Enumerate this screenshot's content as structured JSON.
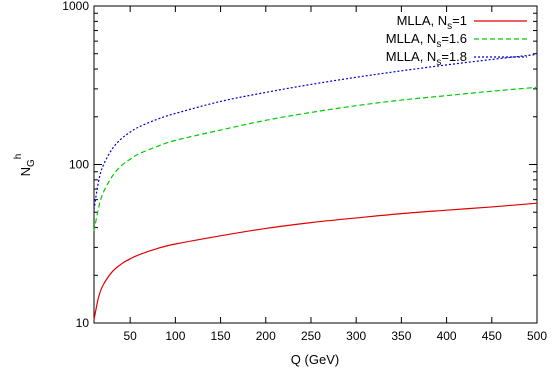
{
  "chart_data": {
    "type": "line",
    "title": "",
    "xlabel": "Q (GeV)",
    "ylabel": {
      "main": "N",
      "sub": "G",
      "sup": "h"
    },
    "xlim": [
      10,
      500
    ],
    "ylim": [
      10,
      1000
    ],
    "y_scale": "log",
    "grid": false,
    "legend_position": "top-right",
    "x_ticks": [
      "50",
      "100",
      "150",
      "200",
      "250",
      "300",
      "350",
      "400",
      "450",
      "500"
    ],
    "y_ticks": [
      "10",
      "100",
      "1000"
    ],
    "series": [
      {
        "name": "MLLA, N_s=1",
        "label_main": "MLLA, N",
        "label_sub": "s",
        "label_tail": "=1",
        "color": "#e00000",
        "dash": "solid",
        "x": [
          10,
          15,
          20,
          30,
          40,
          50,
          60,
          80,
          100,
          150,
          200,
          250,
          300,
          350,
          400,
          450,
          500
        ],
        "y": [
          10.5,
          14.5,
          17.3,
          21.0,
          23.5,
          25.4,
          27.0,
          29.5,
          31.5,
          35.5,
          39.5,
          43.0,
          46.0,
          49.0,
          51.5,
          54.0,
          57.0
        ]
      },
      {
        "name": "MLLA, N_s=1.6",
        "label_main": "MLLA, N",
        "label_sub": "s",
        "label_tail": "=1.6",
        "color": "#00cc00",
        "dash": "dashed",
        "x": [
          10,
          15,
          20,
          30,
          40,
          50,
          60,
          80,
          100,
          150,
          200,
          250,
          300,
          350,
          400,
          450,
          500
        ],
        "y": [
          38,
          53,
          66,
          84,
          98,
          108,
          117,
          130,
          142,
          165,
          190,
          213,
          235,
          255,
          272,
          290,
          307
        ]
      },
      {
        "name": "MLLA, N_s=1.8",
        "label_main": "MLLA, N",
        "label_sub": "s",
        "label_tail": "=1.8",
        "color": "#0000cc",
        "dash": "dotted",
        "x": [
          10,
          15,
          20,
          30,
          40,
          50,
          60,
          80,
          100,
          150,
          200,
          250,
          300,
          350,
          400,
          450,
          500
        ],
        "y": [
          52,
          78,
          98,
          125,
          145,
          160,
          173,
          193,
          210,
          250,
          285,
          320,
          355,
          390,
          425,
          460,
          495
        ]
      }
    ]
  }
}
